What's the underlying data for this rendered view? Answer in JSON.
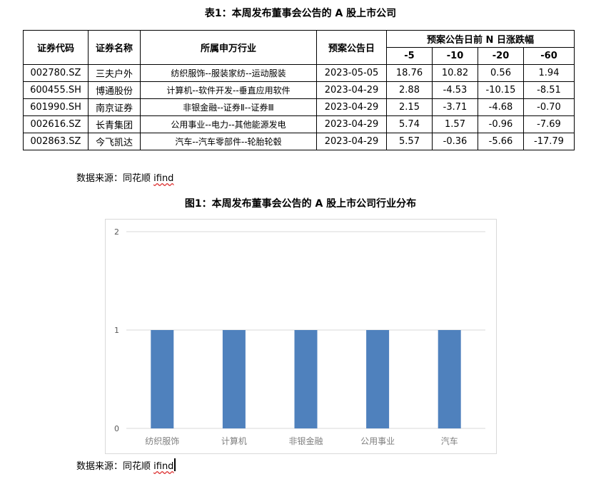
{
  "table_title": "表1：本周发布董事会公告的 A 股上市公司",
  "table": {
    "headers": {
      "code": "证券代码",
      "name": "证券名称",
      "industry": "所属申万行业",
      "date": "预案公告日",
      "change_group": "预案公告日前 N 日涨跌幅",
      "n5": "-5",
      "n10": "-10",
      "n20": "-20",
      "n60": "-60"
    },
    "rows": [
      {
        "code": "002780.SZ",
        "name": "三夫户外",
        "industry": "纺织服饰--服装家纺--运动服装",
        "date": "2023-05-05",
        "c5": "18.76",
        "c10": "10.82",
        "c20": "0.56",
        "c60": "1.94"
      },
      {
        "code": "600455.SH",
        "name": "博通股份",
        "industry": "计算机--软件开发--垂直应用软件",
        "date": "2023-04-29",
        "c5": "2.88",
        "c10": "-4.53",
        "c20": "-10.15",
        "c60": "-8.51"
      },
      {
        "code": "601990.SH",
        "name": "南京证券",
        "industry": "非银金融--证券Ⅱ--证券Ⅲ",
        "date": "2023-04-29",
        "c5": "2.15",
        "c10": "-3.71",
        "c20": "-4.68",
        "c60": "-0.70"
      },
      {
        "code": "002616.SZ",
        "name": "长青集团",
        "industry": "公用事业--电力--其他能源发电",
        "date": "2023-04-29",
        "c5": "5.74",
        "c10": "1.57",
        "c20": "-0.96",
        "c60": "-7.69"
      },
      {
        "code": "002863.SZ",
        "name": "今飞凯达",
        "industry": "汽车--汽车零部件--轮胎轮毂",
        "date": "2023-04-29",
        "c5": "5.57",
        "c10": "-0.36",
        "c20": "-5.66",
        "c60": "-17.79"
      }
    ]
  },
  "source1": {
    "prefix": "数据来源：同花顺 ",
    "ifind": "ifind"
  },
  "chart_title": "图1：本周发布董事会公告的 A 股上市公司行业分布",
  "chart_data": {
    "type": "bar",
    "categories": [
      "纺织服饰",
      "计算机",
      "非银金融",
      "公用事业",
      "汽车"
    ],
    "values": [
      1,
      1,
      1,
      1,
      1
    ],
    "title": "",
    "xlabel": "",
    "ylabel": "",
    "ylim": [
      0,
      2
    ],
    "yticks": [
      "0",
      "1",
      "2"
    ],
    "grid": true,
    "bar_color": "#4f81bd"
  },
  "source2": {
    "prefix": "数据来源：同花顺 ",
    "ifind": "ifind"
  }
}
